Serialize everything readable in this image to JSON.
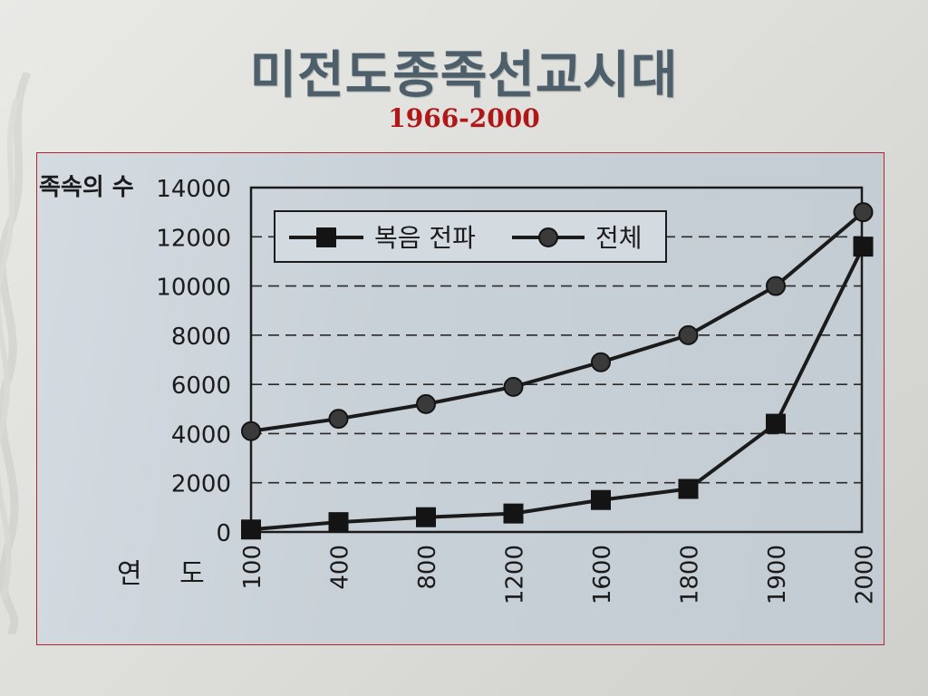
{
  "slide": {
    "title": "미전도종족선교시대",
    "subtitle": "1966-2000"
  },
  "chart_data": {
    "type": "line",
    "ylabel": "족속의 수",
    "xlabel": "연 도",
    "categories": [
      "100",
      "400",
      "800",
      "1200",
      "1600",
      "1800",
      "1900",
      "2000"
    ],
    "ylim": [
      0,
      14000
    ],
    "yticks": [
      0,
      2000,
      4000,
      6000,
      8000,
      10000,
      12000,
      14000
    ],
    "grid": "horizontal dashed",
    "legend_position": "top-left",
    "series": [
      {
        "name": "복음 전파",
        "marker": "square",
        "values": [
          100,
          400,
          600,
          750,
          1300,
          1750,
          4400,
          11600
        ]
      },
      {
        "name": "전체",
        "marker": "circle",
        "values": [
          4100,
          4600,
          5200,
          5900,
          6900,
          8000,
          10000,
          13000
        ]
      }
    ]
  }
}
